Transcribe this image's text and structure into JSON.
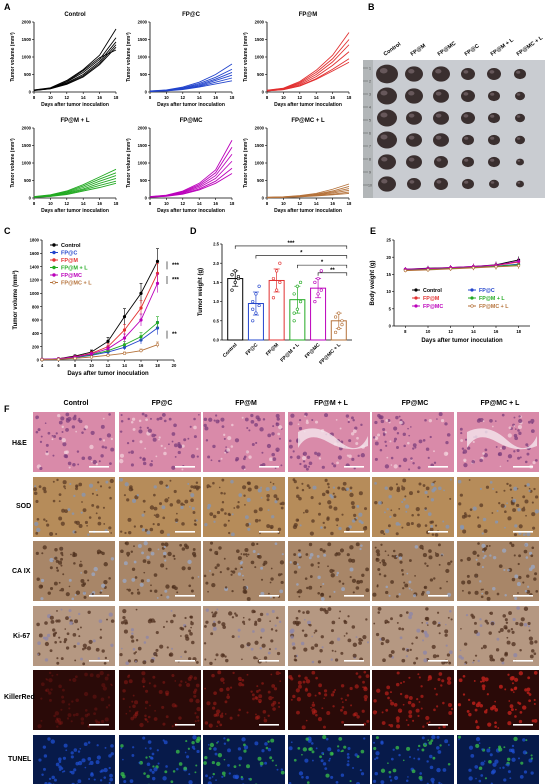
{
  "panels": {
    "A": "A",
    "B": "B",
    "C": "C",
    "D": "D",
    "E": "E",
    "F": "F"
  },
  "colors": {
    "Control": "#000000",
    "FP@C": "#2244cc",
    "FP@M": "#e23030",
    "FP@M + L": "#22aa22",
    "FP@MC": "#bb00bb",
    "FP@MC + L": "#b5723a"
  },
  "chart_data": [
    {
      "type": "line",
      "panel": "A",
      "title": "Control",
      "xlabel": "Days after tumor inoculation",
      "ylabel": "Tumor volume (mm³)",
      "x": [
        8,
        10,
        12,
        14,
        16,
        18
      ],
      "xticks": [
        8,
        10,
        12,
        14,
        16,
        18
      ],
      "ylim": [
        0,
        2000
      ],
      "yticks": [
        0,
        500,
        1000,
        1500,
        2000
      ],
      "series": [
        {
          "values": [
            60,
            120,
            330,
            640,
            1050,
            1800
          ]
        },
        {
          "values": [
            50,
            100,
            290,
            560,
            930,
            1550
          ]
        },
        {
          "values": [
            55,
            110,
            260,
            500,
            870,
            1430
          ]
        },
        {
          "values": [
            45,
            95,
            240,
            460,
            820,
            1350
          ]
        },
        {
          "values": [
            40,
            90,
            220,
            430,
            780,
            1280
          ]
        },
        {
          "values": [
            50,
            105,
            300,
            610,
            980,
            1200
          ]
        }
      ]
    },
    {
      "type": "line",
      "panel": "A",
      "title": "FP@C",
      "xlabel": "Days after tumor inoculation",
      "ylabel": "Tumor volume (mm³)",
      "x": [
        8,
        10,
        12,
        14,
        16,
        18
      ],
      "xticks": [
        8,
        10,
        12,
        14,
        16,
        18
      ],
      "ylim": [
        0,
        2000
      ],
      "yticks": [
        0,
        500,
        1000,
        1500,
        2000
      ],
      "series": [
        {
          "values": [
            30,
            60,
            140,
            280,
            500,
            800
          ]
        },
        {
          "values": [
            25,
            50,
            120,
            240,
            420,
            650
          ]
        },
        {
          "values": [
            20,
            45,
            110,
            210,
            370,
            560
          ]
        },
        {
          "values": [
            20,
            40,
            95,
            180,
            330,
            480
          ]
        },
        {
          "values": [
            15,
            35,
            85,
            160,
            280,
            400
          ]
        },
        {
          "values": [
            15,
            30,
            70,
            140,
            230,
            320
          ]
        }
      ]
    },
    {
      "type": "line",
      "panel": "A",
      "title": "FP@M",
      "xlabel": "Days after tumor inoculation",
      "ylabel": "Tumor volume (mm³)",
      "x": [
        8,
        10,
        12,
        14,
        16,
        18
      ],
      "xticks": [
        8,
        10,
        12,
        14,
        16,
        18
      ],
      "ylim": [
        0,
        2000
      ],
      "yticks": [
        0,
        500,
        1000,
        1500,
        2000
      ],
      "series": [
        {
          "values": [
            50,
            110,
            300,
            620,
            1050,
            1700
          ]
        },
        {
          "values": [
            45,
            100,
            270,
            560,
            950,
            1500
          ]
        },
        {
          "values": [
            40,
            90,
            240,
            500,
            860,
            1350
          ]
        },
        {
          "values": [
            35,
            80,
            210,
            440,
            760,
            1150
          ]
        },
        {
          "values": [
            30,
            70,
            180,
            380,
            650,
            950
          ]
        },
        {
          "values": [
            30,
            65,
            170,
            360,
            600,
            850
          ]
        }
      ]
    },
    {
      "type": "line",
      "panel": "A",
      "title": "FP@M + L",
      "xlabel": "Days after tumor inoculation",
      "ylabel": "Tumor volume (mm³)",
      "x": [
        8,
        10,
        12,
        14,
        16,
        18
      ],
      "xticks": [
        8,
        10,
        12,
        14,
        16,
        18
      ],
      "ylim": [
        0,
        2000
      ],
      "yticks": [
        0,
        500,
        1000,
        1500,
        2000
      ],
      "series": [
        {
          "values": [
            40,
            90,
            200,
            380,
            600,
            820
          ]
        },
        {
          "values": [
            35,
            80,
            180,
            340,
            540,
            720
          ]
        },
        {
          "values": [
            30,
            70,
            160,
            300,
            480,
            640
          ]
        },
        {
          "values": [
            25,
            60,
            140,
            260,
            420,
            560
          ]
        },
        {
          "values": [
            20,
            50,
            120,
            230,
            360,
            480
          ]
        },
        {
          "values": [
            20,
            45,
            100,
            200,
            300,
            420
          ]
        }
      ]
    },
    {
      "type": "line",
      "panel": "A",
      "title": "FP@MC",
      "xlabel": "Days after tumor inoculation",
      "ylabel": "Tumor volume (mm³)",
      "x": [
        8,
        10,
        12,
        14,
        16,
        18
      ],
      "xticks": [
        8,
        10,
        12,
        14,
        16,
        18
      ],
      "ylim": [
        0,
        2000
      ],
      "yticks": [
        0,
        500,
        1000,
        1500,
        2000
      ],
      "series": [
        {
          "values": [
            40,
            80,
            200,
            420,
            800,
            1650
          ]
        },
        {
          "values": [
            35,
            75,
            180,
            380,
            720,
            1450
          ]
        },
        {
          "values": [
            30,
            70,
            160,
            340,
            640,
            1250
          ]
        },
        {
          "values": [
            30,
            60,
            140,
            300,
            560,
            1050
          ]
        },
        {
          "values": [
            25,
            55,
            120,
            260,
            480,
            850
          ]
        },
        {
          "values": [
            25,
            50,
            110,
            230,
            420,
            700
          ]
        }
      ]
    },
    {
      "type": "line",
      "panel": "A",
      "title": "FP@MC + L",
      "xlabel": "Days after tumor inoculation",
      "ylabel": "Tumor volume (mm³)",
      "x": [
        8,
        10,
        12,
        14,
        16,
        18
      ],
      "xticks": [
        8,
        10,
        12,
        14,
        16,
        18
      ],
      "ylim": [
        0,
        2000
      ],
      "yticks": [
        0,
        500,
        1000,
        1500,
        2000
      ],
      "series": [
        {
          "values": [
            20,
            35,
            70,
            130,
            250,
            400
          ]
        },
        {
          "values": [
            18,
            30,
            60,
            110,
            200,
            330
          ]
        },
        {
          "values": [
            15,
            28,
            55,
            95,
            170,
            270
          ]
        },
        {
          "values": [
            12,
            25,
            45,
            80,
            140,
            220
          ]
        },
        {
          "values": [
            10,
            20,
            40,
            70,
            110,
            170
          ]
        },
        {
          "values": [
            10,
            18,
            35,
            60,
            90,
            130
          ]
        }
      ]
    },
    {
      "type": "line",
      "panel": "C",
      "xlabel": "Days after tumor inoculation",
      "ylabel": "Tumor volume (mm³)",
      "x": [
        4,
        6,
        8,
        10,
        12,
        14,
        16,
        18
      ],
      "xticks": [
        4,
        6,
        8,
        10,
        12,
        14,
        16,
        18,
        20
      ],
      "xlim": [
        4,
        20
      ],
      "ylim": [
        0,
        1800
      ],
      "yticks": [
        0,
        200,
        400,
        600,
        800,
        1000,
        1200,
        1400,
        1600,
        1800
      ],
      "annotations": [
        "***",
        "***",
        "**"
      ],
      "series": [
        {
          "name": "Control",
          "marker": "circle",
          "values": [
            10,
            20,
            60,
            120,
            280,
            650,
            1000,
            1480
          ],
          "err": [
            5,
            8,
            15,
            30,
            60,
            120,
            150,
            190
          ]
        },
        {
          "name": "FP@C",
          "marker": "square",
          "values": [
            8,
            15,
            35,
            70,
            120,
            190,
            300,
            480
          ],
          "err": [
            4,
            6,
            10,
            20,
            30,
            40,
            60,
            100
          ]
        },
        {
          "name": "FP@M",
          "marker": "triangle-up",
          "values": [
            10,
            18,
            50,
            100,
            200,
            450,
            780,
            1300
          ],
          "err": [
            5,
            8,
            12,
            25,
            50,
            80,
            110,
            150
          ]
        },
        {
          "name": "FP@M + L",
          "marker": "triangle-down",
          "values": [
            8,
            15,
            40,
            80,
            140,
            230,
            350,
            560
          ],
          "err": [
            4,
            6,
            10,
            20,
            30,
            45,
            60,
            90
          ]
        },
        {
          "name": "FP@MC",
          "marker": "diamond",
          "values": [
            10,
            18,
            45,
            90,
            170,
            330,
            600,
            1150
          ],
          "err": [
            5,
            8,
            12,
            22,
            40,
            60,
            90,
            140
          ]
        },
        {
          "name": "FP@MC + L",
          "marker": "circle-open",
          "values": [
            5,
            10,
            25,
            45,
            70,
            100,
            140,
            230
          ],
          "err": [
            3,
            5,
            8,
            12,
            15,
            20,
            25,
            40
          ]
        }
      ]
    },
    {
      "type": "bar",
      "panel": "D",
      "ylabel": "Tumor weight (g)",
      "categories": [
        "Control",
        "FP@C",
        "FP@M",
        "FP@M + L",
        "FP@MC",
        "FP@MC + L"
      ],
      "values": [
        1.6,
        0.95,
        1.55,
        1.05,
        1.35,
        0.5
      ],
      "err": [
        0.2,
        0.3,
        0.3,
        0.35,
        0.25,
        0.2
      ],
      "points": [
        [
          1.3,
          1.5,
          1.6,
          1.7,
          1.8,
          1.65
        ],
        [
          0.5,
          0.7,
          0.9,
          1.0,
          1.2,
          1.4,
          0.8
        ],
        [
          1.1,
          1.3,
          1.5,
          1.6,
          1.8,
          2.0
        ],
        [
          0.5,
          0.8,
          1.0,
          1.2,
          1.4,
          1.5,
          0.7
        ],
        [
          1.0,
          1.2,
          1.3,
          1.5,
          1.6,
          1.8
        ],
        [
          0.2,
          0.3,
          0.5,
          0.6,
          0.7,
          0.4
        ]
      ],
      "ylim": [
        0,
        2.5
      ],
      "yticks": [
        0.0,
        0.5,
        1.0,
        1.5,
        2.0,
        2.5
      ],
      "annotations": [
        "***",
        "*",
        "*",
        "**"
      ]
    },
    {
      "type": "line",
      "panel": "E",
      "xlabel": "Days after tumor inoculation",
      "ylabel": "Body weight (g)",
      "x": [
        8,
        10,
        12,
        14,
        16,
        18
      ],
      "xticks": [
        8,
        10,
        12,
        14,
        16,
        18
      ],
      "ylim": [
        0,
        25
      ],
      "yticks": [
        0,
        5,
        10,
        15,
        20,
        25
      ],
      "series": [
        {
          "name": "Control",
          "values": [
            16.5,
            16.8,
            17.0,
            17.3,
            17.8,
            19.2
          ],
          "err": [
            0.6,
            0.7,
            0.7,
            0.8,
            0.9,
            1.0
          ]
        },
        {
          "name": "FP@C",
          "values": [
            16.3,
            16.5,
            16.8,
            17.0,
            17.4,
            18.0
          ],
          "err": [
            0.6,
            0.6,
            0.7,
            0.7,
            0.8,
            0.9
          ]
        },
        {
          "name": "FP@M",
          "values": [
            16.4,
            16.6,
            16.9,
            17.2,
            17.6,
            18.6
          ],
          "err": [
            0.6,
            0.7,
            0.7,
            0.8,
            0.9,
            1.0
          ]
        },
        {
          "name": "FP@M + L",
          "values": [
            16.2,
            16.4,
            16.7,
            17.0,
            17.3,
            17.8
          ],
          "err": [
            0.5,
            0.6,
            0.6,
            0.7,
            0.8,
            0.9
          ]
        },
        {
          "name": "FP@MC",
          "values": [
            16.5,
            16.7,
            17.0,
            17.3,
            17.7,
            18.8
          ],
          "err": [
            0.6,
            0.7,
            0.7,
            0.8,
            0.9,
            1.0
          ]
        },
        {
          "name": "FP@MC + L",
          "values": [
            16.1,
            16.3,
            16.6,
            16.9,
            17.2,
            17.5
          ],
          "err": [
            0.5,
            0.6,
            0.6,
            0.7,
            0.8,
            0.9
          ]
        }
      ]
    }
  ],
  "photo": {
    "groups": [
      "Control",
      "FP@M",
      "FP@MC",
      "FP@C",
      "FP@M + L",
      "FP@MC + L"
    ],
    "ruler_ticks": [
      "1",
      "2",
      "3",
      "4",
      "5",
      "6",
      "7",
      "8",
      "9",
      "10"
    ]
  },
  "histology": {
    "columns": [
      "Control",
      "FP@C",
      "FP@M",
      "FP@M + L",
      "FP@MC",
      "FP@MC + L"
    ],
    "rows": [
      "H&E",
      "SOD",
      "CA IX",
      "Ki-67",
      "KillerRed",
      "TUNEL"
    ]
  }
}
